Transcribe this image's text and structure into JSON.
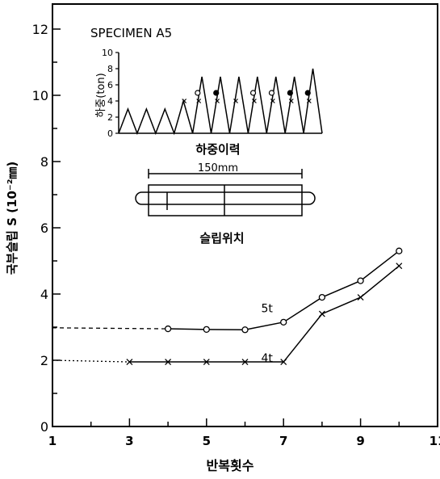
{
  "chart_data": {
    "type": "line",
    "ylabel": "국부슬립 S (10⁻²㎜)",
    "xlabel": "반복횟수",
    "x_ticks": [
      "1",
      "3",
      "5",
      "7",
      "9",
      "11"
    ],
    "y_ticks": [
      "0",
      "2",
      "4",
      "6",
      "8",
      "10",
      "12"
    ],
    "xlim": [
      1,
      11
    ],
    "ylim": [
      0,
      13
    ],
    "series": [
      {
        "name": "5t",
        "marker": "circle",
        "x": [
          4,
          5,
          6,
          7,
          8,
          9,
          10
        ],
        "y": [
          2.95,
          2.93,
          2.92,
          3.15,
          3.9,
          4.4,
          5.3
        ],
        "lead_y": 2.98
      },
      {
        "name": "4t",
        "marker": "x",
        "x": [
          3,
          4,
          5,
          6,
          7,
          8,
          9,
          10
        ],
        "y": [
          1.95,
          1.95,
          1.95,
          1.95,
          1.95,
          3.4,
          3.9,
          4.85
        ],
        "lead_y": 2.0
      }
    ],
    "inset": {
      "title": "SPECIMEN A5",
      "ylabel": "하중(ton)",
      "y_ticks": [
        "0",
        "2",
        "4",
        "6",
        "8",
        "10"
      ],
      "caption": "하중이력",
      "load_peaks": [
        3,
        3,
        3,
        4,
        7,
        7,
        7,
        7,
        7,
        7,
        8
      ]
    },
    "specimen": {
      "dimension": "150mm",
      "caption": "슬립위치"
    }
  }
}
